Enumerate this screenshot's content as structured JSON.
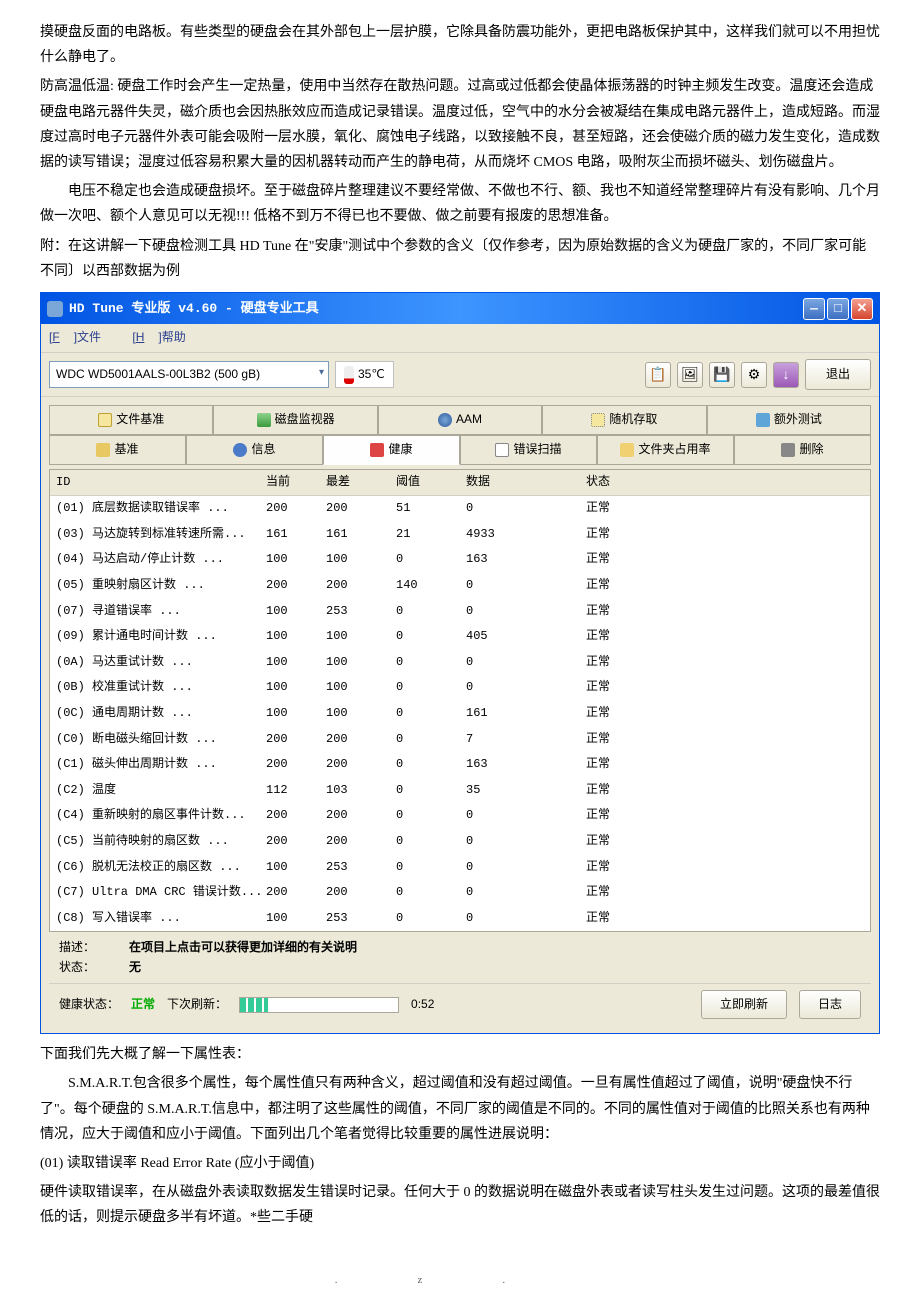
{
  "doc": {
    "para1": "摸硬盘反面的电路板。有些类型的硬盘会在其外部包上一层护膜，它除具备防震功能外，更把电路板保护其中，这样我们就可以不用担忧什么静电了。",
    "para2": "防高温低温: 硬盘工作时会产生一定热量，使用中当然存在散热问题。过高或过低都会使晶体振荡器的时钟主频发生改变。温度还会造成硬盘电路元器件失灵，磁介质也会因热胀效应而造成记录错误。温度过低，空气中的水分会被凝结在集成电路元器件上，造成短路。而湿度过高时电子元器件外表可能会吸附一层水膜，氧化、腐蚀电子线路，以致接触不良，甚至短路，还会使磁介质的磁力发生变化，造成数据的读写错误；湿度过低容易积累大量的因机器转动而产生的静电荷，从而烧坏 CMOS 电路，吸附灰尘而损坏磁头、划伤磁盘片。",
    "para3": "电压不稳定也会造成硬盘损坏。至于磁盘碎片整理建议不要经常做、不做也不行、额、我也不知道经常整理碎片有没有影响、几个月做一次吧、额个人意见可以无视!!! 低格不到万不得已也不要做、做之前要有报废的思想准备。",
    "para4": "附：在这讲解一下硬盘检测工具 HD Tune 在\"安康\"测试中个参数的含义〔仅作参考，因为原始数据的含义为硬盘厂家的，不同厂家可能不同〕以西部数据为例",
    "after1": "下面我们先大概了解一下属性表：",
    "after2": "S.M.A.R.T.包含很多个属性，每个属性值只有两种含义，超过阈值和没有超过阈值。一旦有属性值超过了阈值，说明\"硬盘快不行了\"。每个硬盘的 S.M.A.R.T.信息中，都注明了这些属性的阈值，不同厂家的阈值是不同的。不同的属性值对于阈值的比照关系也有两种情况，应大于阈值和应小于阈值。下面列出几个笔者觉得比较重要的属性进展说明：",
    "after3": "(01) 读取错误率 Read Error Rate (应小于阈值)",
    "after4": "硬件读取错误率，在从磁盘外表读取数据发生错误时记录。任何大于 0 的数据说明在磁盘外表或者读写柱头发生过问题。这项的最差值很低的话，则提示硬盘多半有坏道。*些二手硬"
  },
  "window": {
    "title": "HD Tune 专业版 v4.60 - 硬盘专业工具",
    "menu": {
      "file": "文件",
      "file_key": "F",
      "help": "帮助",
      "help_key": "H"
    },
    "drive": "WDC WD5001AALS-00L3B2 (500 gB)",
    "temperature": "35℃",
    "exit_label": "退出",
    "tabs_row1": [
      {
        "icon": "ic-file",
        "label": "文件基准"
      },
      {
        "icon": "ic-chart",
        "label": "磁盘监视器"
      },
      {
        "icon": "ic-sound",
        "label": "AAM"
      },
      {
        "icon": "ic-rand",
        "label": "随机存取"
      },
      {
        "icon": "ic-extra",
        "label": "额外测试"
      }
    ],
    "tabs_row2": [
      {
        "icon": "ic-key",
        "label": "基准"
      },
      {
        "icon": "ic-info",
        "label": "信息"
      },
      {
        "icon": "ic-health",
        "label": "健康",
        "active": true
      },
      {
        "icon": "ic-search",
        "label": "错误扫描"
      },
      {
        "icon": "ic-folder",
        "label": "文件夹占用率"
      },
      {
        "icon": "ic-trash",
        "label": "删除"
      }
    ],
    "columns": {
      "id": "ID",
      "current": "当前",
      "worst": "最差",
      "threshold": "阈值",
      "data": "数据",
      "status": "状态"
    },
    "rows": [
      {
        "id": "(01) 底层数据读取错误率",
        "dots": "...",
        "cur": "200",
        "worst": "200",
        "thr": "51",
        "data": "0",
        "status": "正常"
      },
      {
        "id": "(03) 马达旋转到标准转速所需...",
        "dots": "",
        "cur": "161",
        "worst": "161",
        "thr": "21",
        "data": "4933",
        "status": "正常"
      },
      {
        "id": "(04) 马达启动/停止计数",
        "dots": "...",
        "cur": "100",
        "worst": "100",
        "thr": "0",
        "data": "163",
        "status": "正常"
      },
      {
        "id": "(05) 重映射扇区计数",
        "dots": "...",
        "cur": "200",
        "worst": "200",
        "thr": "140",
        "data": "0",
        "status": "正常"
      },
      {
        "id": "(07) 寻道错误率",
        "dots": "...",
        "cur": "100",
        "worst": "253",
        "thr": "0",
        "data": "0",
        "status": "正常"
      },
      {
        "id": "(09) 累计通电时间计数",
        "dots": "...",
        "cur": "100",
        "worst": "100",
        "thr": "0",
        "data": "405",
        "status": "正常"
      },
      {
        "id": "(0A) 马达重试计数",
        "dots": "...",
        "cur": "100",
        "worst": "100",
        "thr": "0",
        "data": "0",
        "status": "正常"
      },
      {
        "id": "(0B) 校准重试计数",
        "dots": "...",
        "cur": "100",
        "worst": "100",
        "thr": "0",
        "data": "0",
        "status": "正常"
      },
      {
        "id": "(0C) 通电周期计数",
        "dots": "...",
        "cur": "100",
        "worst": "100",
        "thr": "0",
        "data": "161",
        "status": "正常"
      },
      {
        "id": "(C0) 断电磁头缩回计数",
        "dots": "...",
        "cur": "200",
        "worst": "200",
        "thr": "0",
        "data": "7",
        "status": "正常"
      },
      {
        "id": "(C1) 磁头伸出周期计数",
        "dots": "...",
        "cur": "200",
        "worst": "200",
        "thr": "0",
        "data": "163",
        "status": "正常"
      },
      {
        "id": "(C2) 温度",
        "dots": "",
        "cur": "112",
        "worst": "103",
        "thr": "0",
        "data": "35",
        "status": "正常"
      },
      {
        "id": "(C4) 重新映射的扇区事件计数...",
        "dots": "",
        "cur": "200",
        "worst": "200",
        "thr": "0",
        "data": "0",
        "status": "正常"
      },
      {
        "id": "(C5) 当前待映射的扇区数",
        "dots": "...",
        "cur": "200",
        "worst": "200",
        "thr": "0",
        "data": "0",
        "status": "正常"
      },
      {
        "id": "(C6) 脱机无法校正的扇区数",
        "dots": "...",
        "cur": "100",
        "worst": "253",
        "thr": "0",
        "data": "0",
        "status": "正常"
      },
      {
        "id": "(C7) Ultra DMA CRC 错误计数...",
        "dots": "",
        "cur": "200",
        "worst": "200",
        "thr": "0",
        "data": "0",
        "status": "正常"
      },
      {
        "id": "(C8) 写入错误率",
        "dots": "...",
        "cur": "100",
        "worst": "253",
        "thr": "0",
        "data": "0",
        "status": "正常"
      }
    ],
    "desc": {
      "desc_label": "描述：",
      "desc_value": "在项目上点击可以获得更加详细的有关说明",
      "status_label": "状态：",
      "status_value": "无"
    },
    "statusbar": {
      "health_label": "健康状态：",
      "health_value": "正常",
      "next_refresh_label": "下次刷新：",
      "countdown": "0:52",
      "refresh_now": "立即刷新",
      "log": "日志",
      "progress_pct": 18
    }
  }
}
